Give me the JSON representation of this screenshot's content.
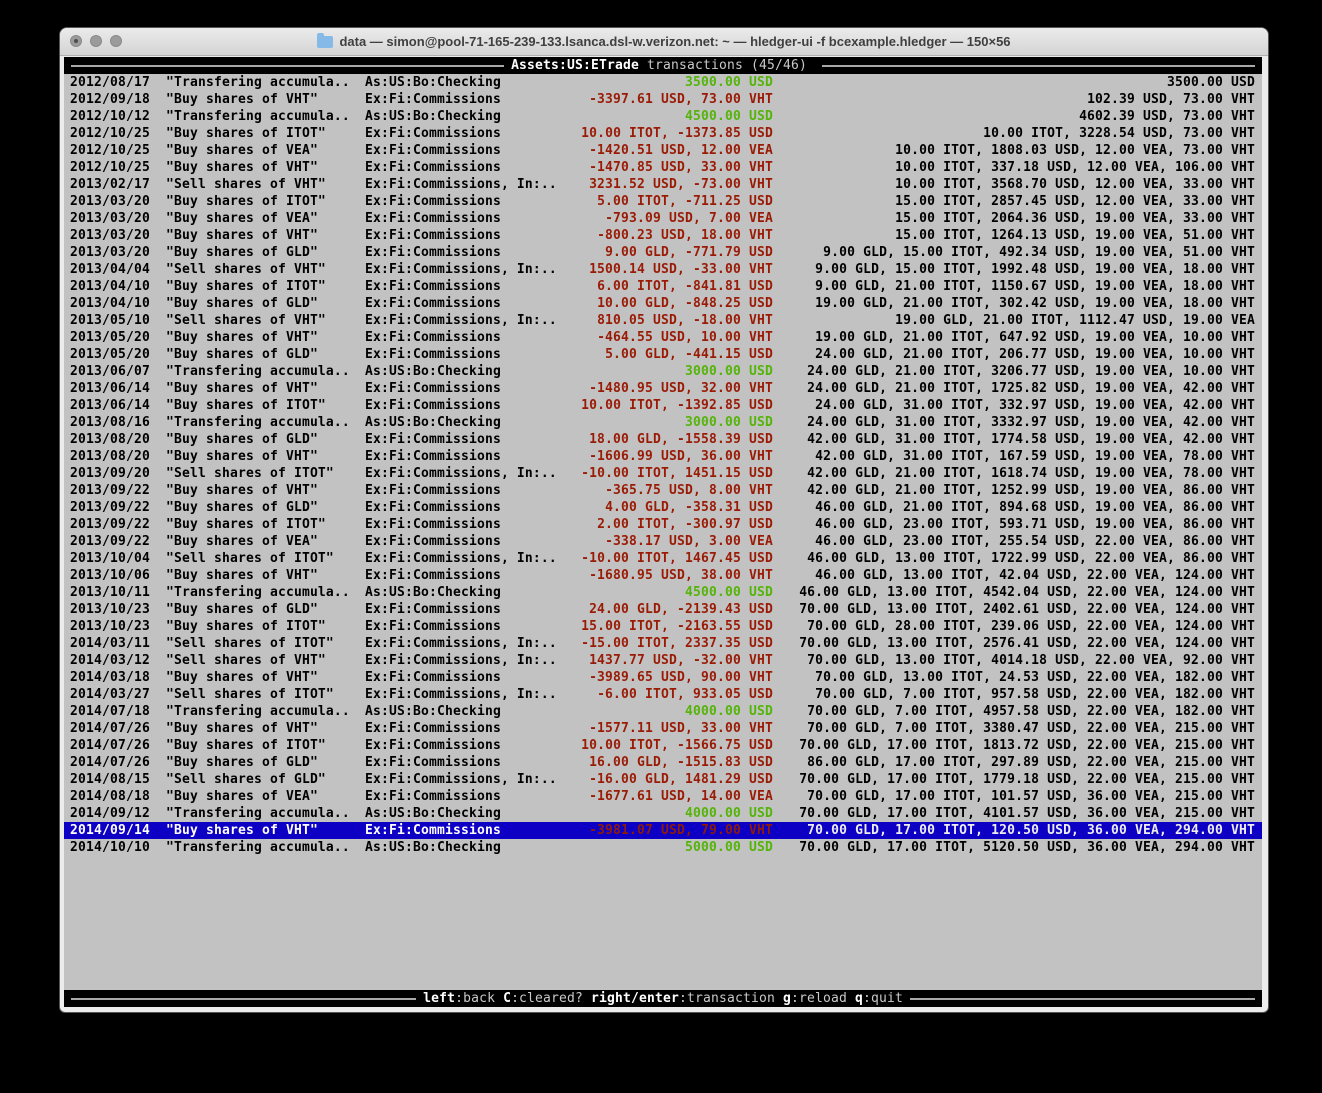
{
  "window": {
    "title": "data — simon@pool-71-165-239-133.lsanca.dsl-w.verizon.net: ~ — hledger-ui -f bcexample.hledger — 150×56"
  },
  "header": {
    "account": "Assets:US:ETrade",
    "rest": " transactions (45/46) "
  },
  "footer": {
    "hints": [
      {
        "key": "left",
        "desc": ":back"
      },
      {
        "key": "C",
        "desc": ":cleared?"
      },
      {
        "key": "right/enter",
        "desc": ":transaction"
      },
      {
        "key": "g",
        "desc": ":reload"
      },
      {
        "key": "q",
        "desc": ":quit"
      }
    ]
  },
  "colors": {
    "screen_bg": "#c2c2c2",
    "bar_bg": "#000000",
    "amount_negative": "#9a1b05",
    "amount_positive": "#55b409",
    "selected_bg": "#0d00c4"
  },
  "transactions": [
    {
      "date": "2012/08/17",
      "description": "\"Transfering accumula..",
      "account": "As:US:Bo:Checking",
      "change": "3500.00 USD",
      "change_positive": true,
      "balance": "3500.00 USD",
      "selected": false
    },
    {
      "date": "2012/09/18",
      "description": "\"Buy shares of VHT\"",
      "account": "Ex:Fi:Commissions",
      "change": "-3397.61 USD, 73.00 VHT",
      "change_positive": false,
      "balance": "102.39 USD, 73.00 VHT",
      "selected": false
    },
    {
      "date": "2012/10/12",
      "description": "\"Transfering accumula..",
      "account": "As:US:Bo:Checking",
      "change": "4500.00 USD",
      "change_positive": true,
      "balance": "4602.39 USD, 73.00 VHT",
      "selected": false
    },
    {
      "date": "2012/10/25",
      "description": "\"Buy shares of ITOT\"",
      "account": "Ex:Fi:Commissions",
      "change": "10.00 ITOT, -1373.85 USD",
      "change_positive": false,
      "balance": "10.00 ITOT, 3228.54 USD, 73.00 VHT",
      "selected": false
    },
    {
      "date": "2012/10/25",
      "description": "\"Buy shares of VEA\"",
      "account": "Ex:Fi:Commissions",
      "change": "-1420.51 USD, 12.00 VEA",
      "change_positive": false,
      "balance": "10.00 ITOT, 1808.03 USD, 12.00 VEA, 73.00 VHT",
      "selected": false
    },
    {
      "date": "2012/10/25",
      "description": "\"Buy shares of VHT\"",
      "account": "Ex:Fi:Commissions",
      "change": "-1470.85 USD, 33.00 VHT",
      "change_positive": false,
      "balance": "10.00 ITOT, 337.18 USD, 12.00 VEA, 106.00 VHT",
      "selected": false
    },
    {
      "date": "2013/02/17",
      "description": "\"Sell shares of VHT\"",
      "account": "Ex:Fi:Commissions, In:..",
      "change": "3231.52 USD, -73.00 VHT",
      "change_positive": false,
      "balance": "10.00 ITOT, 3568.70 USD, 12.00 VEA, 33.00 VHT",
      "selected": false
    },
    {
      "date": "2013/03/20",
      "description": "\"Buy shares of ITOT\"",
      "account": "Ex:Fi:Commissions",
      "change": "5.00 ITOT, -711.25 USD",
      "change_positive": false,
      "balance": "15.00 ITOT, 2857.45 USD, 12.00 VEA, 33.00 VHT",
      "selected": false
    },
    {
      "date": "2013/03/20",
      "description": "\"Buy shares of VEA\"",
      "account": "Ex:Fi:Commissions",
      "change": "-793.09 USD, 7.00 VEA",
      "change_positive": false,
      "balance": "15.00 ITOT, 2064.36 USD, 19.00 VEA, 33.00 VHT",
      "selected": false
    },
    {
      "date": "2013/03/20",
      "description": "\"Buy shares of VHT\"",
      "account": "Ex:Fi:Commissions",
      "change": "-800.23 USD, 18.00 VHT",
      "change_positive": false,
      "balance": "15.00 ITOT, 1264.13 USD, 19.00 VEA, 51.00 VHT",
      "selected": false
    },
    {
      "date": "2013/03/20",
      "description": "\"Buy shares of GLD\"",
      "account": "Ex:Fi:Commissions",
      "change": "9.00 GLD, -771.79 USD",
      "change_positive": false,
      "balance": "9.00 GLD, 15.00 ITOT, 492.34 USD, 19.00 VEA, 51.00 VHT",
      "selected": false
    },
    {
      "date": "2013/04/04",
      "description": "\"Sell shares of VHT\"",
      "account": "Ex:Fi:Commissions, In:..",
      "change": "1500.14 USD, -33.00 VHT",
      "change_positive": false,
      "balance": "9.00 GLD, 15.00 ITOT, 1992.48 USD, 19.00 VEA, 18.00 VHT",
      "selected": false
    },
    {
      "date": "2013/04/10",
      "description": "\"Buy shares of ITOT\"",
      "account": "Ex:Fi:Commissions",
      "change": "6.00 ITOT, -841.81 USD",
      "change_positive": false,
      "balance": "9.00 GLD, 21.00 ITOT, 1150.67 USD, 19.00 VEA, 18.00 VHT",
      "selected": false
    },
    {
      "date": "2013/04/10",
      "description": "\"Buy shares of GLD\"",
      "account": "Ex:Fi:Commissions",
      "change": "10.00 GLD, -848.25 USD",
      "change_positive": false,
      "balance": "19.00 GLD, 21.00 ITOT, 302.42 USD, 19.00 VEA, 18.00 VHT",
      "selected": false
    },
    {
      "date": "2013/05/10",
      "description": "\"Sell shares of VHT\"",
      "account": "Ex:Fi:Commissions, In:..",
      "change": "810.05 USD, -18.00 VHT",
      "change_positive": false,
      "balance": "19.00 GLD, 21.00 ITOT, 1112.47 USD, 19.00 VEA",
      "selected": false
    },
    {
      "date": "2013/05/20",
      "description": "\"Buy shares of VHT\"",
      "account": "Ex:Fi:Commissions",
      "change": "-464.55 USD, 10.00 VHT",
      "change_positive": false,
      "balance": "19.00 GLD, 21.00 ITOT, 647.92 USD, 19.00 VEA, 10.00 VHT",
      "selected": false
    },
    {
      "date": "2013/05/20",
      "description": "\"Buy shares of GLD\"",
      "account": "Ex:Fi:Commissions",
      "change": "5.00 GLD, -441.15 USD",
      "change_positive": false,
      "balance": "24.00 GLD, 21.00 ITOT, 206.77 USD, 19.00 VEA, 10.00 VHT",
      "selected": false
    },
    {
      "date": "2013/06/07",
      "description": "\"Transfering accumula..",
      "account": "As:US:Bo:Checking",
      "change": "3000.00 USD",
      "change_positive": true,
      "balance": "24.00 GLD, 21.00 ITOT, 3206.77 USD, 19.00 VEA, 10.00 VHT",
      "selected": false
    },
    {
      "date": "2013/06/14",
      "description": "\"Buy shares of VHT\"",
      "account": "Ex:Fi:Commissions",
      "change": "-1480.95 USD, 32.00 VHT",
      "change_positive": false,
      "balance": "24.00 GLD, 21.00 ITOT, 1725.82 USD, 19.00 VEA, 42.00 VHT",
      "selected": false
    },
    {
      "date": "2013/06/14",
      "description": "\"Buy shares of ITOT\"",
      "account": "Ex:Fi:Commissions",
      "change": "10.00 ITOT, -1392.85 USD",
      "change_positive": false,
      "balance": "24.00 GLD, 31.00 ITOT, 332.97 USD, 19.00 VEA, 42.00 VHT",
      "selected": false
    },
    {
      "date": "2013/08/16",
      "description": "\"Transfering accumula..",
      "account": "As:US:Bo:Checking",
      "change": "3000.00 USD",
      "change_positive": true,
      "balance": "24.00 GLD, 31.00 ITOT, 3332.97 USD, 19.00 VEA, 42.00 VHT",
      "selected": false
    },
    {
      "date": "2013/08/20",
      "description": "\"Buy shares of GLD\"",
      "account": "Ex:Fi:Commissions",
      "change": "18.00 GLD, -1558.39 USD",
      "change_positive": false,
      "balance": "42.00 GLD, 31.00 ITOT, 1774.58 USD, 19.00 VEA, 42.00 VHT",
      "selected": false
    },
    {
      "date": "2013/08/20",
      "description": "\"Buy shares of VHT\"",
      "account": "Ex:Fi:Commissions",
      "change": "-1606.99 USD, 36.00 VHT",
      "change_positive": false,
      "balance": "42.00 GLD, 31.00 ITOT, 167.59 USD, 19.00 VEA, 78.00 VHT",
      "selected": false
    },
    {
      "date": "2013/09/20",
      "description": "\"Sell shares of ITOT\"",
      "account": "Ex:Fi:Commissions, In:..",
      "change": "-10.00 ITOT, 1451.15 USD",
      "change_positive": false,
      "balance": "42.00 GLD, 21.00 ITOT, 1618.74 USD, 19.00 VEA, 78.00 VHT",
      "selected": false
    },
    {
      "date": "2013/09/22",
      "description": "\"Buy shares of VHT\"",
      "account": "Ex:Fi:Commissions",
      "change": "-365.75 USD, 8.00 VHT",
      "change_positive": false,
      "balance": "42.00 GLD, 21.00 ITOT, 1252.99 USD, 19.00 VEA, 86.00 VHT",
      "selected": false
    },
    {
      "date": "2013/09/22",
      "description": "\"Buy shares of GLD\"",
      "account": "Ex:Fi:Commissions",
      "change": "4.00 GLD, -358.31 USD",
      "change_positive": false,
      "balance": "46.00 GLD, 21.00 ITOT, 894.68 USD, 19.00 VEA, 86.00 VHT",
      "selected": false
    },
    {
      "date": "2013/09/22",
      "description": "\"Buy shares of ITOT\"",
      "account": "Ex:Fi:Commissions",
      "change": "2.00 ITOT, -300.97 USD",
      "change_positive": false,
      "balance": "46.00 GLD, 23.00 ITOT, 593.71 USD, 19.00 VEA, 86.00 VHT",
      "selected": false
    },
    {
      "date": "2013/09/22",
      "description": "\"Buy shares of VEA\"",
      "account": "Ex:Fi:Commissions",
      "change": "-338.17 USD, 3.00 VEA",
      "change_positive": false,
      "balance": "46.00 GLD, 23.00 ITOT, 255.54 USD, 22.00 VEA, 86.00 VHT",
      "selected": false
    },
    {
      "date": "2013/10/04",
      "description": "\"Sell shares of ITOT\"",
      "account": "Ex:Fi:Commissions, In:..",
      "change": "-10.00 ITOT, 1467.45 USD",
      "change_positive": false,
      "balance": "46.00 GLD, 13.00 ITOT, 1722.99 USD, 22.00 VEA, 86.00 VHT",
      "selected": false
    },
    {
      "date": "2013/10/06",
      "description": "\"Buy shares of VHT\"",
      "account": "Ex:Fi:Commissions",
      "change": "-1680.95 USD, 38.00 VHT",
      "change_positive": false,
      "balance": "46.00 GLD, 13.00 ITOT, 42.04 USD, 22.00 VEA, 124.00 VHT",
      "selected": false
    },
    {
      "date": "2013/10/11",
      "description": "\"Transfering accumula..",
      "account": "As:US:Bo:Checking",
      "change": "4500.00 USD",
      "change_positive": true,
      "balance": "46.00 GLD, 13.00 ITOT, 4542.04 USD, 22.00 VEA, 124.00 VHT",
      "selected": false
    },
    {
      "date": "2013/10/23",
      "description": "\"Buy shares of GLD\"",
      "account": "Ex:Fi:Commissions",
      "change": "24.00 GLD, -2139.43 USD",
      "change_positive": false,
      "balance": "70.00 GLD, 13.00 ITOT, 2402.61 USD, 22.00 VEA, 124.00 VHT",
      "selected": false
    },
    {
      "date": "2013/10/23",
      "description": "\"Buy shares of ITOT\"",
      "account": "Ex:Fi:Commissions",
      "change": "15.00 ITOT, -2163.55 USD",
      "change_positive": false,
      "balance": "70.00 GLD, 28.00 ITOT, 239.06 USD, 22.00 VEA, 124.00 VHT",
      "selected": false
    },
    {
      "date": "2014/03/11",
      "description": "\"Sell shares of ITOT\"",
      "account": "Ex:Fi:Commissions, In:..",
      "change": "-15.00 ITOT, 2337.35 USD",
      "change_positive": false,
      "balance": "70.00 GLD, 13.00 ITOT, 2576.41 USD, 22.00 VEA, 124.00 VHT",
      "selected": false
    },
    {
      "date": "2014/03/12",
      "description": "\"Sell shares of VHT\"",
      "account": "Ex:Fi:Commissions, In:..",
      "change": "1437.77 USD, -32.00 VHT",
      "change_positive": false,
      "balance": "70.00 GLD, 13.00 ITOT, 4014.18 USD, 22.00 VEA, 92.00 VHT",
      "selected": false
    },
    {
      "date": "2014/03/18",
      "description": "\"Buy shares of VHT\"",
      "account": "Ex:Fi:Commissions",
      "change": "-3989.65 USD, 90.00 VHT",
      "change_positive": false,
      "balance": "70.00 GLD, 13.00 ITOT, 24.53 USD, 22.00 VEA, 182.00 VHT",
      "selected": false
    },
    {
      "date": "2014/03/27",
      "description": "\"Sell shares of ITOT\"",
      "account": "Ex:Fi:Commissions, In:..",
      "change": "-6.00 ITOT, 933.05 USD",
      "change_positive": false,
      "balance": "70.00 GLD, 7.00 ITOT, 957.58 USD, 22.00 VEA, 182.00 VHT",
      "selected": false
    },
    {
      "date": "2014/07/18",
      "description": "\"Transfering accumula..",
      "account": "As:US:Bo:Checking",
      "change": "4000.00 USD",
      "change_positive": true,
      "balance": "70.00 GLD, 7.00 ITOT, 4957.58 USD, 22.00 VEA, 182.00 VHT",
      "selected": false
    },
    {
      "date": "2014/07/26",
      "description": "\"Buy shares of VHT\"",
      "account": "Ex:Fi:Commissions",
      "change": "-1577.11 USD, 33.00 VHT",
      "change_positive": false,
      "balance": "70.00 GLD, 7.00 ITOT, 3380.47 USD, 22.00 VEA, 215.00 VHT",
      "selected": false
    },
    {
      "date": "2014/07/26",
      "description": "\"Buy shares of ITOT\"",
      "account": "Ex:Fi:Commissions",
      "change": "10.00 ITOT, -1566.75 USD",
      "change_positive": false,
      "balance": "70.00 GLD, 17.00 ITOT, 1813.72 USD, 22.00 VEA, 215.00 VHT",
      "selected": false
    },
    {
      "date": "2014/07/26",
      "description": "\"Buy shares of GLD\"",
      "account": "Ex:Fi:Commissions",
      "change": "16.00 GLD, -1515.83 USD",
      "change_positive": false,
      "balance": "86.00 GLD, 17.00 ITOT, 297.89 USD, 22.00 VEA, 215.00 VHT",
      "selected": false
    },
    {
      "date": "2014/08/15",
      "description": "\"Sell shares of GLD\"",
      "account": "Ex:Fi:Commissions, In:..",
      "change": "-16.00 GLD, 1481.29 USD",
      "change_positive": false,
      "balance": "70.00 GLD, 17.00 ITOT, 1779.18 USD, 22.00 VEA, 215.00 VHT",
      "selected": false
    },
    {
      "date": "2014/08/18",
      "description": "\"Buy shares of VEA\"",
      "account": "Ex:Fi:Commissions",
      "change": "-1677.61 USD, 14.00 VEA",
      "change_positive": false,
      "balance": "70.00 GLD, 17.00 ITOT, 101.57 USD, 36.00 VEA, 215.00 VHT",
      "selected": false
    },
    {
      "date": "2014/09/12",
      "description": "\"Transfering accumula..",
      "account": "As:US:Bo:Checking",
      "change": "4000.00 USD",
      "change_positive": true,
      "balance": "70.00 GLD, 17.00 ITOT, 4101.57 USD, 36.00 VEA, 215.00 VHT",
      "selected": false
    },
    {
      "date": "2014/09/14",
      "description": "\"Buy shares of VHT\"",
      "account": "Ex:Fi:Commissions",
      "change": "-3981.07 USD, 79.00 VHT",
      "change_positive": false,
      "balance": "70.00 GLD, 17.00 ITOT, 120.50 USD, 36.00 VEA, 294.00 VHT",
      "selected": true
    },
    {
      "date": "2014/10/10",
      "description": "\"Transfering accumula..",
      "account": "As:US:Bo:Checking",
      "change": "5000.00 USD",
      "change_positive": true,
      "balance": "70.00 GLD, 17.00 ITOT, 5120.50 USD, 36.00 VEA, 294.00 VHT",
      "selected": false
    }
  ]
}
